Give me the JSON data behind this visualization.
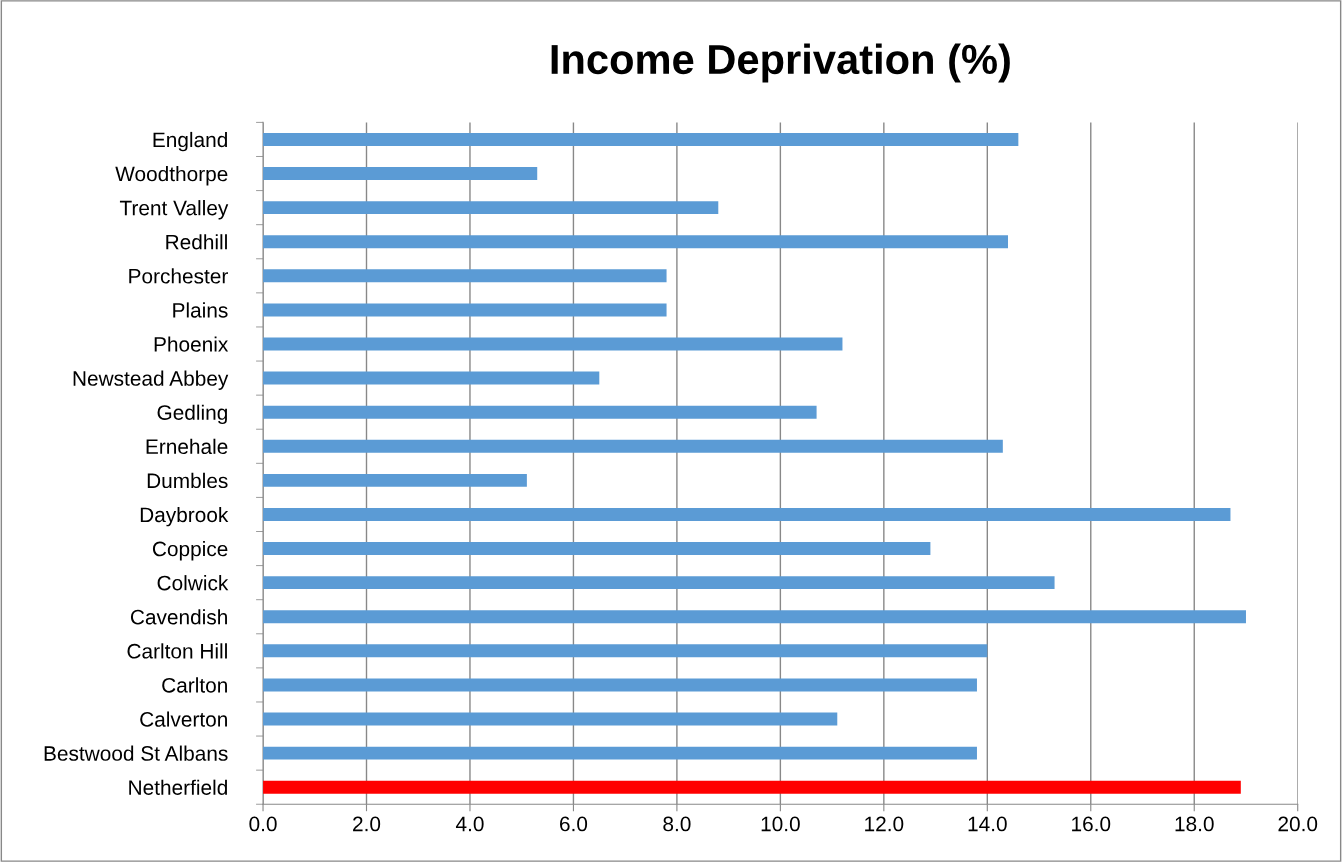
{
  "chart_data": {
    "type": "bar",
    "orientation": "horizontal",
    "title": "Income Deprivation (%)",
    "categories": [
      "England",
      "Woodthorpe",
      "Trent Valley",
      "Redhill",
      "Porchester",
      "Plains",
      "Phoenix",
      "Newstead Abbey",
      "Gedling",
      "Ernehale",
      "Dumbles",
      "Daybrook",
      "Coppice",
      "Colwick",
      "Cavendish",
      "Carlton Hill",
      "Carlton",
      "Calverton",
      "Bestwood St Albans",
      "Netherfield"
    ],
    "values": [
      14.6,
      5.3,
      8.8,
      14.4,
      7.8,
      7.8,
      11.2,
      6.5,
      10.7,
      14.3,
      5.1,
      18.7,
      12.9,
      15.3,
      19.0,
      14.0,
      13.8,
      11.1,
      13.8,
      18.9
    ],
    "colors": [
      "#5b9bd5",
      "#5b9bd5",
      "#5b9bd5",
      "#5b9bd5",
      "#5b9bd5",
      "#5b9bd5",
      "#5b9bd5",
      "#5b9bd5",
      "#5b9bd5",
      "#5b9bd5",
      "#5b9bd5",
      "#5b9bd5",
      "#5b9bd5",
      "#5b9bd5",
      "#5b9bd5",
      "#5b9bd5",
      "#5b9bd5",
      "#5b9bd5",
      "#5b9bd5",
      "#ff0000"
    ],
    "xlim": [
      0,
      20
    ],
    "xticks": [
      {
        "value": 0,
        "label": "0.0"
      },
      {
        "value": 2,
        "label": "2.0"
      },
      {
        "value": 4,
        "label": "4.0"
      },
      {
        "value": 6,
        "label": "6.0"
      },
      {
        "value": 8,
        "label": "8.0"
      },
      {
        "value": 10,
        "label": "10.0"
      },
      {
        "value": 12,
        "label": "12.0"
      },
      {
        "value": 14,
        "label": "14.0"
      },
      {
        "value": 16,
        "label": "16.0"
      },
      {
        "value": 18,
        "label": "18.0"
      },
      {
        "value": 20,
        "label": "20.0"
      }
    ],
    "grid": "x"
  }
}
